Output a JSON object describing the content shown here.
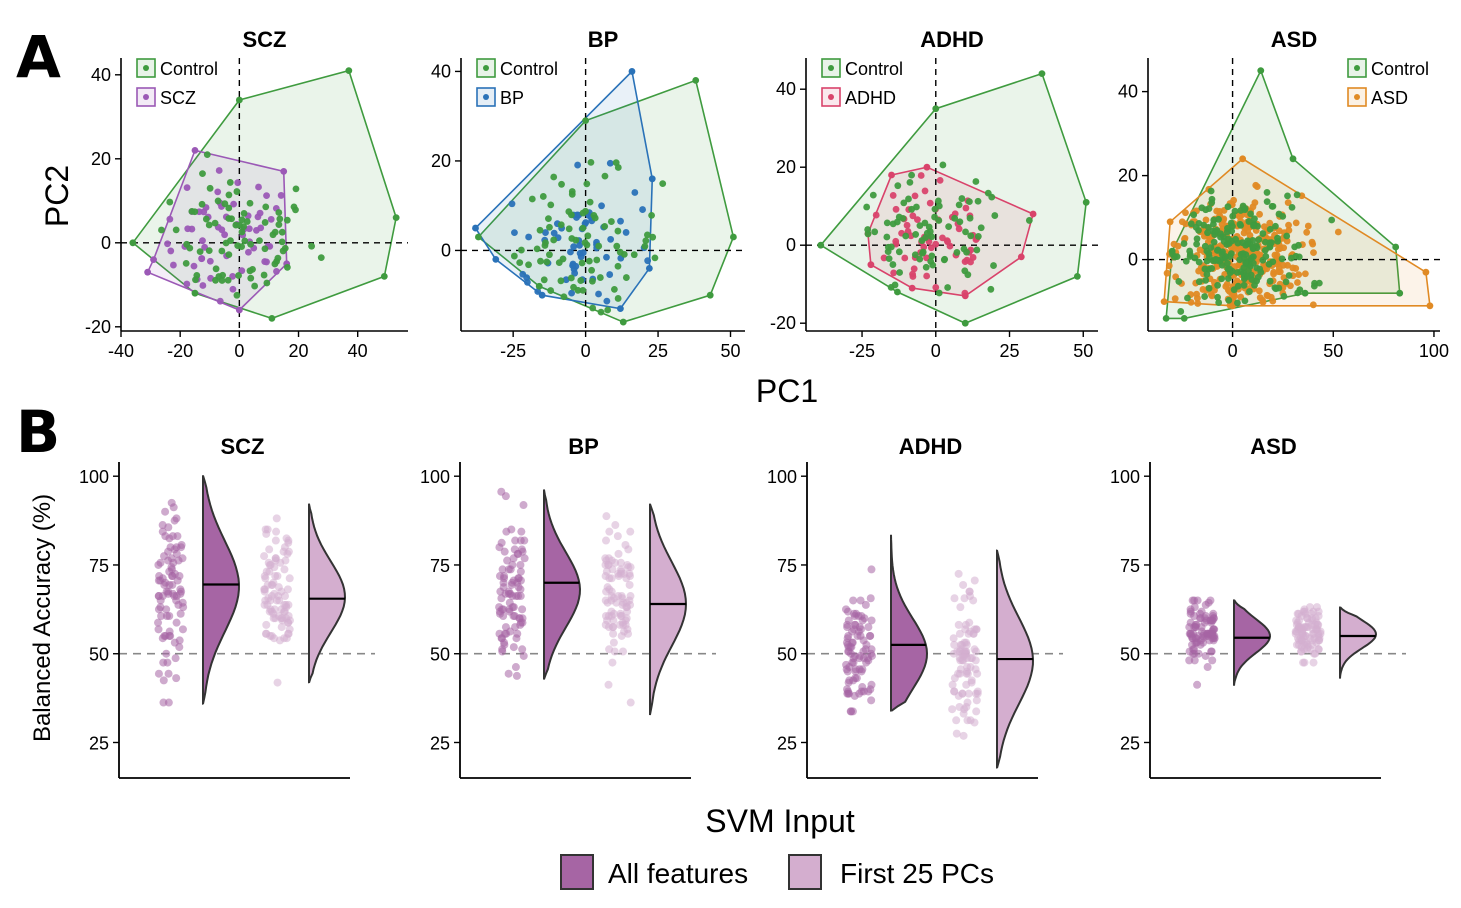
{
  "panel_labels": {
    "a": "A",
    "b": "B"
  },
  "pca_axis": {
    "xlabel": "PC1",
    "ylabel": "PC2"
  },
  "acc_axis": {
    "xlabel": "SVM Input",
    "ylabel": "Balanced Accuracy (%)"
  },
  "colors": {
    "control": "#3f9b3f",
    "SCZ": "#9b59b6",
    "BP": "#2a72b8",
    "ADHD": "#d9436b",
    "ASD": "#e08a24",
    "all_features": "#a665a4",
    "first25": "#d4aecf"
  },
  "chart_data": [
    {
      "type": "scatter",
      "title": "SCZ",
      "group": "SCZ",
      "xlim": [
        -40,
        57
      ],
      "ylim": [
        -21,
        44
      ],
      "xticks": [
        -40,
        -20,
        0,
        20,
        40
      ],
      "yticks": [
        -20,
        0,
        20,
        40
      ],
      "legend": [
        "Control",
        "SCZ"
      ],
      "legend_pos": "top-left",
      "hull_control": [
        [
          -36,
          0
        ],
        [
          0,
          34
        ],
        [
          37,
          41
        ],
        [
          53,
          6
        ],
        [
          49,
          -8
        ],
        [
          11,
          -18
        ],
        [
          -15,
          -12
        ]
      ],
      "hull_case": [
        [
          -15,
          22
        ],
        [
          15,
          17
        ],
        [
          16,
          -5
        ],
        [
          0,
          -16
        ],
        [
          -31,
          -7
        ],
        [
          -29,
          -4
        ]
      ]
    },
    {
      "type": "scatter",
      "title": "BP",
      "group": "BP",
      "xlim": [
        -43,
        55
      ],
      "ylim": [
        -18,
        43
      ],
      "xticks": [
        -25,
        0,
        25,
        50
      ],
      "yticks": [
        0,
        20,
        40
      ],
      "legend": [
        "Control",
        "BP"
      ],
      "legend_pos": "top-left",
      "hull_control": [
        [
          -37,
          3
        ],
        [
          0,
          29
        ],
        [
          38,
          38
        ],
        [
          51,
          3
        ],
        [
          43,
          -10
        ],
        [
          13,
          -16
        ],
        [
          -16,
          -8
        ]
      ],
      "hull_case": [
        [
          -38,
          5
        ],
        [
          16,
          40
        ],
        [
          23,
          16
        ],
        [
          22,
          -4
        ],
        [
          12,
          -13
        ],
        [
          -15,
          -10
        ],
        [
          -31,
          -2
        ]
      ]
    },
    {
      "type": "scatter",
      "title": "ADHD",
      "group": "ADHD",
      "xlim": [
        -44,
        55
      ],
      "ylim": [
        -22,
        48
      ],
      "xticks": [
        -25,
        0,
        25,
        50
      ],
      "yticks": [
        -20,
        0,
        20,
        40
      ],
      "legend": [
        "Control",
        "ADHD"
      ],
      "legend_pos": "top-left",
      "hull_control": [
        [
          -39,
          0
        ],
        [
          0,
          35
        ],
        [
          36,
          44
        ],
        [
          51,
          11
        ],
        [
          48,
          -8
        ],
        [
          10,
          -20
        ],
        [
          -13,
          -12
        ]
      ],
      "hull_case": [
        [
          -15,
          18
        ],
        [
          -3,
          20
        ],
        [
          33,
          8
        ],
        [
          29,
          -3
        ],
        [
          10,
          -13
        ],
        [
          -8,
          -11
        ],
        [
          -22,
          -5
        ],
        [
          -23,
          3
        ]
      ]
    },
    {
      "type": "scatter",
      "title": "ASD",
      "group": "ASD",
      "xlim": [
        -42,
        103
      ],
      "ylim": [
        -17,
        48
      ],
      "xticks": [
        0,
        50,
        100
      ],
      "yticks": [
        0,
        20,
        40
      ],
      "legend": [
        "Control",
        "ASD"
      ],
      "legend_pos": "top-right",
      "hull_control": [
        [
          -33,
          -14
        ],
        [
          -30,
          2
        ],
        [
          14,
          45
        ],
        [
          30,
          24
        ],
        [
          81,
          3
        ],
        [
          83,
          -8
        ],
        [
          36,
          -8
        ],
        [
          -24,
          -14
        ]
      ],
      "hull_case": [
        [
          -31,
          9
        ],
        [
          5,
          24
        ],
        [
          96,
          -3
        ],
        [
          98,
          -11
        ],
        [
          0,
          -11
        ],
        [
          -34,
          -10
        ]
      ]
    },
    {
      "type": "violin",
      "title": "SCZ",
      "ylim": [
        15,
        104
      ],
      "yticks": [
        25,
        50,
        75,
        100
      ],
      "chance": 50,
      "series": [
        {
          "name": "All features",
          "median": 69.5,
          "min": 36,
          "max": 100,
          "peak": 69
        },
        {
          "name": "First 25 PCs",
          "median": 65.5,
          "min": 42,
          "max": 92,
          "peak": 66
        }
      ]
    },
    {
      "type": "violin",
      "title": "BP",
      "ylim": [
        15,
        104
      ],
      "yticks": [
        25,
        50,
        75,
        100
      ],
      "chance": 50,
      "series": [
        {
          "name": "All features",
          "median": 70,
          "min": 43,
          "max": 96,
          "peak": 68
        },
        {
          "name": "First 25 PCs",
          "median": 64,
          "min": 33,
          "max": 92,
          "peak": 64
        }
      ]
    },
    {
      "type": "violin",
      "title": "ADHD",
      "ylim": [
        15,
        104
      ],
      "yticks": [
        25,
        50,
        75,
        100
      ],
      "chance": 50,
      "series": [
        {
          "name": "All features",
          "median": 52.5,
          "min": 34,
          "max": 83.5,
          "peak": 50
        },
        {
          "name": "First 25 PCs",
          "median": 48.5,
          "min": 18,
          "max": 79,
          "peak": 48
        }
      ]
    },
    {
      "type": "violin",
      "title": "ASD",
      "ylim": [
        15,
        104
      ],
      "yticks": [
        25,
        50,
        75,
        100
      ],
      "chance": 50,
      "series": [
        {
          "name": "All features",
          "median": 54.5,
          "min": 41,
          "max": 65,
          "peak": 55
        },
        {
          "name": "First 25 PCs",
          "median": 55,
          "min": 43,
          "max": 63,
          "peak": 55.5
        }
      ]
    }
  ],
  "bottom_legend": [
    "All features",
    "First 25 PCs"
  ]
}
